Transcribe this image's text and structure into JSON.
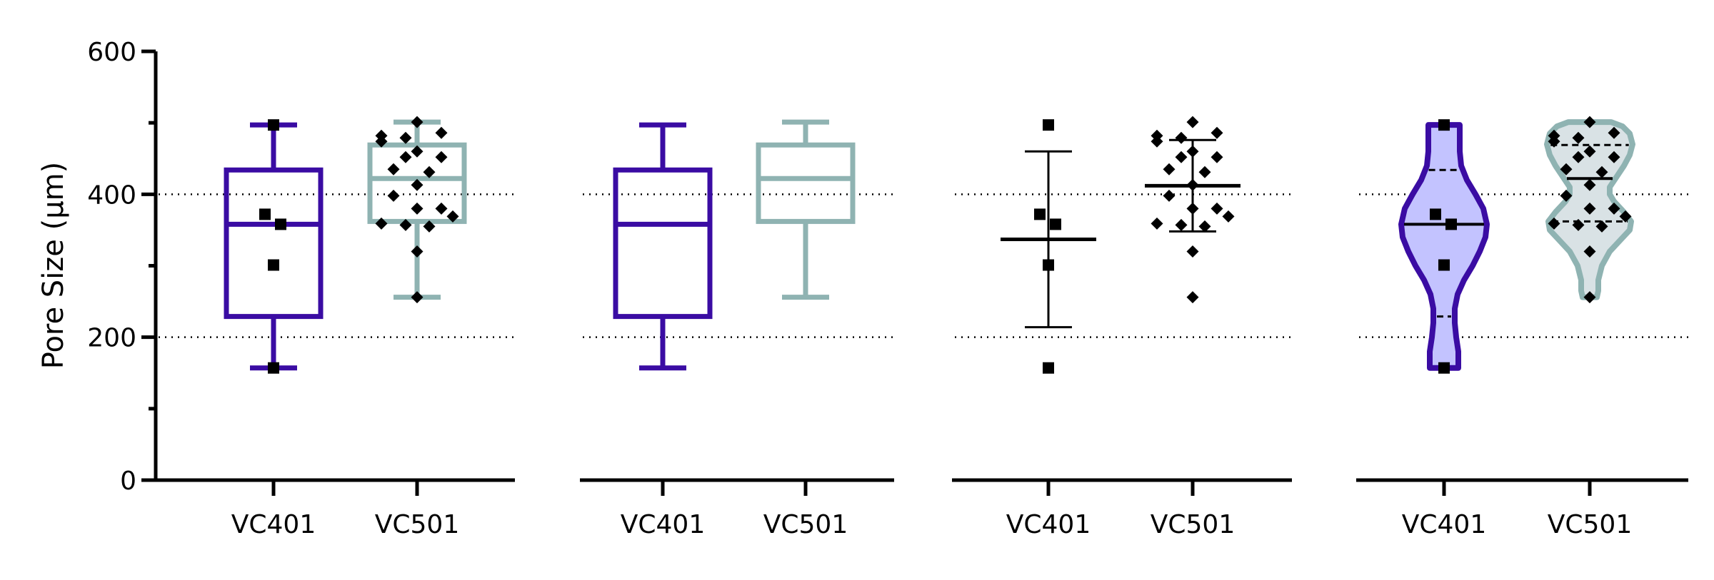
{
  "chart_data": {
    "type": "box",
    "title": "",
    "ylabel": "Pore Size (µm)",
    "ylim": [
      0,
      600
    ],
    "yticks": [
      0,
      200,
      400,
      600
    ],
    "y_minor_ticks": [
      100,
      300,
      500
    ],
    "gridlines_dotted_at": [
      200,
      400
    ],
    "categories": [
      "VC401",
      "VC501"
    ],
    "colors": {
      "VC401": "#3a0ca3",
      "VC501": "#8fb3b2",
      "VC401_violin_fill": "#c3c3ff",
      "VC501_violin_fill": "#d9e2e5",
      "points": "#000000",
      "axis": "#000000"
    },
    "series": [
      {
        "name": "VC401",
        "marker": "square",
        "values": [
          497,
          372,
          358,
          301,
          157
        ],
        "stats": {
          "min": 157,
          "q1": 229,
          "median": 358,
          "q3": 434,
          "max": 497,
          "mean": 337,
          "sd": 123
        }
      },
      {
        "name": "VC501",
        "marker": "diamond",
        "values": [
          501,
          486,
          482,
          474,
          479,
          460,
          452,
          452,
          435,
          431,
          413,
          398,
          380,
          380,
          369,
          359,
          357,
          355,
          320,
          256
        ],
        "stats": {
          "min": 256,
          "q1": 362,
          "median": 422,
          "q3": 469,
          "max": 501,
          "mean": 412,
          "sd": 64
        }
      }
    ],
    "panels": [
      {
        "style": "box-with-points",
        "show_y_axis": true
      },
      {
        "style": "box-only",
        "show_y_axis": false
      },
      {
        "style": "mean-sd-with-points",
        "show_y_axis": false
      },
      {
        "style": "violin-with-points",
        "show_y_axis": false
      }
    ]
  }
}
